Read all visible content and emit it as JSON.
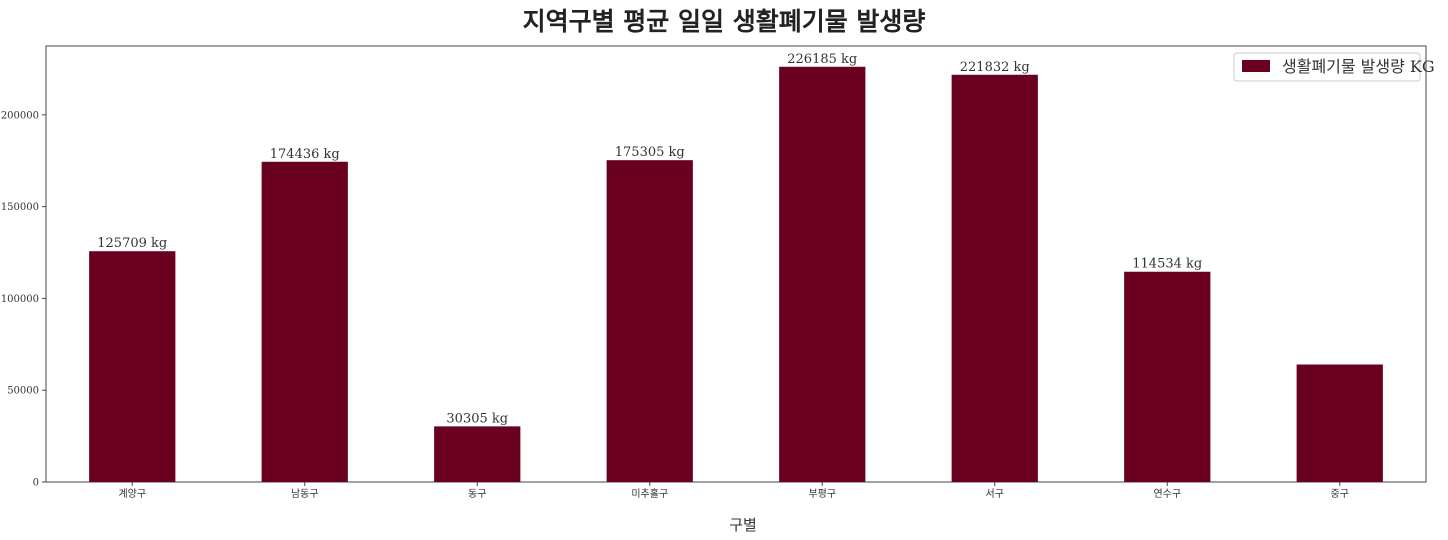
{
  "chart_data": {
    "type": "bar",
    "title": "지역구별 평균 일일 생활폐기물 발생량",
    "xlabel": "구별",
    "ylabel": "",
    "categories": [
      "계양구",
      "남동구",
      "동구",
      "미추홀구",
      "부평구",
      "서구",
      "연수구",
      "중구"
    ],
    "series": [
      {
        "name": "생활폐기물 발생량 KG",
        "values": [
          125709,
          174436,
          30305,
          175305,
          226185,
          221832,
          114534,
          64000
        ]
      }
    ],
    "data_labels": [
      "125709 kg",
      "174436 kg",
      "30305 kg",
      "175305 kg",
      "226185 kg",
      "221832 kg",
      "114534 kg",
      ""
    ],
    "ylim": [
      0,
      237500
    ],
    "yticks": [
      0,
      50000,
      100000,
      150000,
      200000
    ],
    "ytick_labels": [
      "0",
      "50000",
      "100000",
      "150000",
      "200000"
    ],
    "grid": false,
    "legend_position": "top-right",
    "bar_color": "#6a0020"
  }
}
